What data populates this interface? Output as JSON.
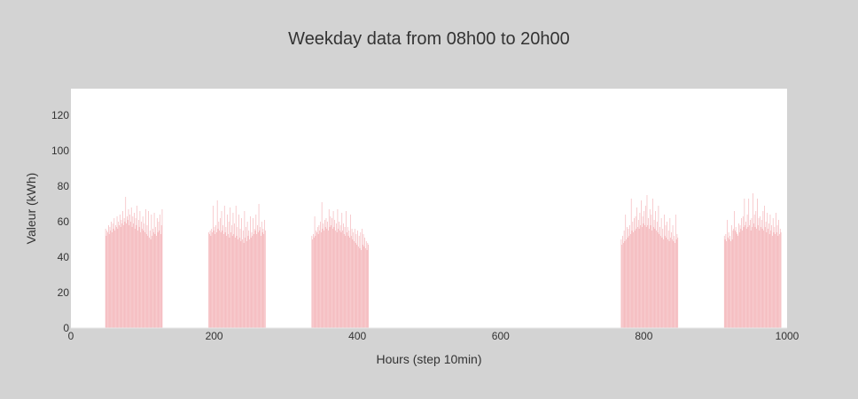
{
  "chart_data": {
    "type": "bar",
    "title": "Weekday data from 08h00 to 20h00",
    "xlabel": "Hours (step 10min)",
    "ylabel": "Valeur (kWh)",
    "xlim": [
      0,
      1000
    ],
    "ylim": [
      0,
      135
    ],
    "xticks": [
      0,
      200,
      400,
      600,
      800,
      1000
    ],
    "yticks": [
      0,
      20,
      40,
      60,
      80,
      100,
      120
    ],
    "grid": false,
    "bar_color": "#f4b6ba",
    "plot_background": "#ffffff",
    "page_background": "#d3d3d3",
    "series": [
      {
        "x_start": 48,
        "values": [
          56,
          52,
          55,
          54,
          58,
          53,
          57,
          55,
          60,
          54,
          59,
          56,
          62,
          55,
          58,
          57,
          63,
          56,
          60,
          58,
          64,
          57,
          61,
          59,
          66,
          58,
          62,
          60,
          74,
          59,
          63,
          61,
          67,
          58,
          64,
          60,
          68,
          57,
          63,
          59,
          65,
          56,
          62,
          58,
          69,
          55,
          61,
          57,
          66,
          54,
          60,
          56,
          63,
          55,
          59,
          54,
          67,
          53,
          58,
          52,
          66,
          51,
          55,
          50,
          64,
          52,
          56,
          54,
          65,
          53,
          57,
          52,
          62,
          54,
          60,
          55,
          64,
          53,
          58,
          67
        ]
      },
      {
        "x_start": 192,
        "values": [
          54,
          53,
          55,
          52,
          56,
          54,
          69,
          55,
          57,
          53,
          58,
          54,
          72,
          56,
          60,
          55,
          62,
          54,
          66,
          55,
          58,
          53,
          69,
          54,
          57,
          52,
          64,
          53,
          60,
          51,
          68,
          54,
          58,
          52,
          65,
          53,
          59,
          51,
          69,
          52,
          57,
          50,
          64,
          51,
          56,
          49,
          62,
          50,
          55,
          48,
          66,
          51,
          57,
          49,
          60,
          52,
          55,
          50,
          63,
          51,
          54,
          52,
          62,
          53,
          56,
          55,
          64,
          53,
          58,
          54,
          70,
          55,
          57,
          52,
          60,
          54,
          56,
          53,
          61,
          55
        ]
      },
      {
        "x_start": 336,
        "values": [
          52,
          50,
          53,
          51,
          63,
          52,
          55,
          54,
          57,
          53,
          58,
          55,
          60,
          54,
          71,
          56,
          59,
          55,
          61,
          57,
          62,
          56,
          60,
          55,
          67,
          57,
          63,
          58,
          62,
          56,
          66,
          57,
          61,
          55,
          59,
          54,
          67,
          56,
          60,
          55,
          58,
          54,
          65,
          55,
          59,
          53,
          57,
          52,
          66,
          54,
          57,
          52,
          55,
          51,
          64,
          52,
          56,
          50,
          54,
          49,
          56,
          48,
          53,
          47,
          55,
          46,
          52,
          45,
          54,
          44,
          56,
          47,
          53,
          46,
          51,
          45,
          49,
          44,
          48,
          47
        ]
      },
      {
        "x_start": 768,
        "values": [
          50,
          47,
          52,
          48,
          55,
          49,
          64,
          50,
          57,
          51,
          56,
          52,
          58,
          53,
          73,
          55,
          60,
          54,
          62,
          55,
          63,
          56,
          68,
          57,
          61,
          56,
          65,
          58,
          72,
          57,
          63,
          59,
          66,
          58,
          69,
          57,
          75,
          58,
          62,
          56,
          67,
          58,
          64,
          55,
          73,
          57,
          61,
          56,
          66,
          55,
          60,
          54,
          69,
          53,
          57,
          52,
          62,
          51,
          56,
          50,
          64,
          52,
          58,
          51,
          60,
          50,
          55,
          49,
          62,
          51,
          54,
          50,
          58,
          49,
          52,
          48,
          64,
          50,
          53,
          51
        ]
      },
      {
        "x_start": 912,
        "values": [
          52,
          50,
          53,
          49,
          61,
          51,
          54,
          50,
          52,
          49,
          58,
          50,
          55,
          56,
          66,
          55,
          57,
          54,
          53,
          52,
          59,
          54,
          58,
          56,
          62,
          55,
          63,
          57,
          73,
          58,
          60,
          56,
          64,
          57,
          73,
          58,
          61,
          55,
          62,
          57,
          76,
          59,
          64,
          57,
          66,
          56,
          73,
          58,
          62,
          55,
          63,
          57,
          61,
          56,
          66,
          55,
          69,
          57,
          60,
          54,
          65,
          56,
          59,
          53,
          64,
          55,
          58,
          52,
          62,
          54,
          57,
          53,
          65,
          54,
          58,
          52,
          61,
          53,
          56,
          54
        ]
      }
    ]
  }
}
